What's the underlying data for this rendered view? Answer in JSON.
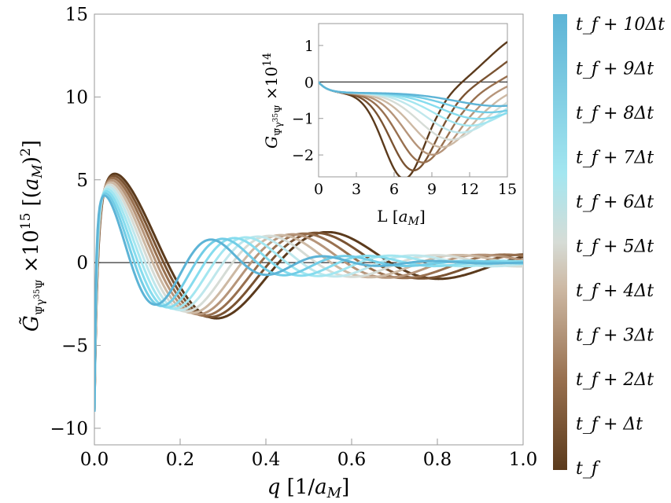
{
  "chart_data": [
    {
      "type": "line",
      "title": "",
      "xlabel": "q [1/a_M]",
      "ylabel": "G̃ (Ψ̄ γ35 Ψ) ×10^15 [(a_M)^2]",
      "xlim": [
        0.0,
        1.0
      ],
      "ylim": [
        -11.0,
        15.0
      ],
      "x_ticks": [
        "0.0",
        "0.2",
        "0.4",
        "0.6",
        "0.8",
        "1.0"
      ],
      "y_ticks": [
        "15",
        "10",
        "5",
        "0",
        "−5",
        "−10"
      ],
      "x_tick_values": [
        0.0,
        0.2,
        0.4,
        0.6,
        0.8,
        1.0
      ],
      "y_tick_values": [
        15,
        10,
        5,
        0,
        -5,
        -10
      ],
      "reference_line": 0,
      "series": [
        {
          "name": "t_f",
          "color": "#5b3a1c",
          "k": 0.0,
          "scale": 1.0
        },
        {
          "name": "t_f + Δt",
          "color": "#7a5332",
          "k": 0.1,
          "scale": 1.0
        },
        {
          "name": "t_f + 2Δt",
          "color": "#98704f",
          "k": 0.2,
          "scale": 1.0
        },
        {
          "name": "t_f + 3Δt",
          "color": "#b6957a",
          "k": 0.3,
          "scale": 1.0
        },
        {
          "name": "t_f + 4Δt",
          "color": "#cdb9a4",
          "k": 0.4,
          "scale": 1.0
        },
        {
          "name": "t_f + 5Δt",
          "color": "#d6dcd6",
          "k": 0.5,
          "scale": 1.0
        },
        {
          "name": "t_f + 6Δt",
          "color": "#bfe7ec",
          "k": 0.6,
          "scale": 1.0
        },
        {
          "name": "t_f + 7Δt",
          "color": "#a3e6f0",
          "k": 0.7,
          "scale": 1.0
        },
        {
          "name": "t_f + 8Δt",
          "color": "#86dcee",
          "k": 0.8,
          "scale": 1.0
        },
        {
          "name": "t_f + 9Δt",
          "color": "#72cde6",
          "k": 0.9,
          "scale": 1.0
        },
        {
          "name": "t_f + 10Δt",
          "color": "#5db4d6",
          "k": 1.0,
          "scale": 1.0
        }
      ]
    },
    {
      "type": "line",
      "title": "inset",
      "xlabel": "L [a_M]",
      "ylabel": "G (Ψ̄ γ35 Ψ) ×10^14",
      "xlim": [
        0,
        15
      ],
      "ylim": [
        -2.6,
        1.6
      ],
      "x_ticks": [
        "0",
        "3",
        "6",
        "9",
        "12",
        "15"
      ],
      "y_ticks": [
        "1",
        "0",
        "−1",
        "−2"
      ],
      "x_tick_values": [
        0,
        3,
        6,
        9,
        12,
        15
      ],
      "y_tick_values": [
        1,
        0,
        -1,
        -2
      ],
      "reference_line": 0
    }
  ],
  "colorbar": {
    "labels": [
      "t_f + 10Δt",
      "t_f + 9Δt",
      "t_f + 8Δt",
      "t_f + 7Δt",
      "t_f + 6Δt",
      "t_f + 5Δt",
      "t_f + 4Δt",
      "t_f + 3Δt",
      "t_f + 2Δt",
      "t_f + Δt",
      "t_f"
    ],
    "top_color": "#5db4d6",
    "bottom_color": "#5b3a1c"
  }
}
